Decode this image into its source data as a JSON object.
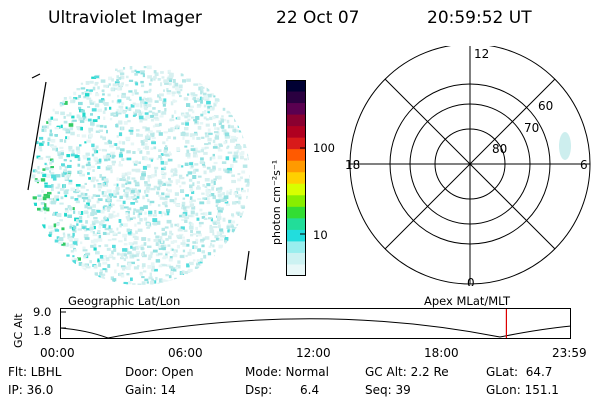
{
  "header": {
    "instrument": "Ultraviolet Imager",
    "date": "22 Oct 07",
    "time": "20:59:52 UT"
  },
  "colorbar": {
    "unit_label": "photon cm⁻²s⁻¹",
    "ticks": [
      "100",
      "10"
    ],
    "colors": [
      "#000033",
      "#2a0040",
      "#5a0050",
      "#8a0030",
      "#b00020",
      "#d81a1a",
      "#ff5a00",
      "#ff9a00",
      "#ffd000",
      "#d8ff00",
      "#88ee00",
      "#33dd33",
      "#22dd99",
      "#22dddd",
      "#99eeee",
      "#ccf2f2",
      "#e8f8f8"
    ]
  },
  "polar_plot": {
    "mlt_labels": [
      "12",
      "18",
      "6",
      "0"
    ],
    "lat_labels": [
      "60",
      "70",
      "80"
    ]
  },
  "timeline": {
    "left_label": "Geographic Lat/Lon",
    "right_label": "Apex MLat/MLT",
    "y_axis_label": "GC Alt",
    "y_ticks": [
      "9.0",
      "1.8"
    ],
    "x_ticks": [
      "00:00",
      "06:00",
      "12:00",
      "18:00",
      "23:59"
    ],
    "marker_color": "#dd0000",
    "marker_fraction": 0.875
  },
  "status": {
    "flt": "Flt: LBHL",
    "ip": "IP: 36.0",
    "door": "Door: Open",
    "gain": "Gain: 14",
    "mode": "Mode: Normal",
    "dsp_label": "Dsp:",
    "dsp_value": "6.4",
    "gc_alt": "GC Alt: 2.2 Re",
    "seq": "Seq: 39",
    "glat": "GLat:  64.7",
    "glon": "GLon: 151.1"
  }
}
